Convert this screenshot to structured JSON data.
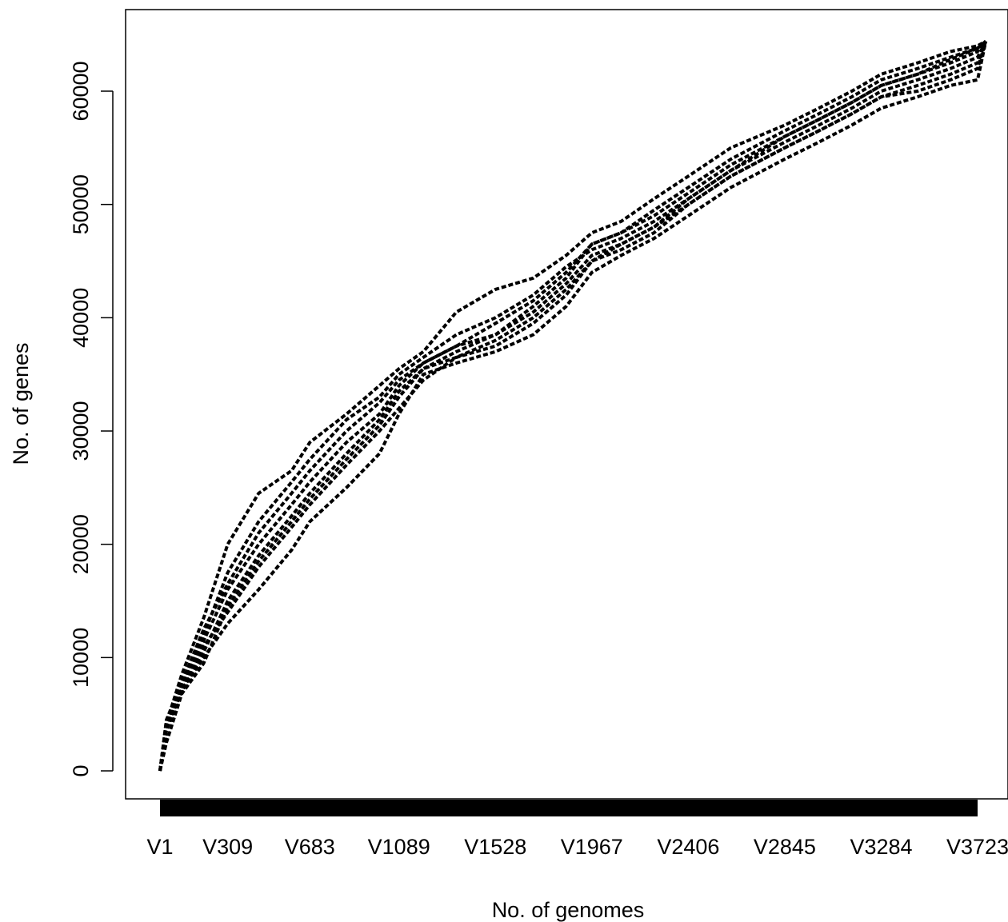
{
  "chart_data": {
    "type": "line",
    "title": "",
    "xlabel": "No. of genomes",
    "ylabel": "No. of genes",
    "x_tick_labels": [
      "V1",
      "V309",
      "V683",
      "V1089",
      "V1528",
      "V1967",
      "V2406",
      "V2845",
      "V3284",
      "V3723"
    ],
    "x_tick_genome_index": [
      1,
      309,
      683,
      1089,
      1528,
      1967,
      2406,
      2845,
      3284,
      3723
    ],
    "y_ticks": [
      0,
      10000,
      20000,
      30000,
      40000,
      50000,
      60000
    ],
    "y_tick_labels": [
      "0",
      "10000",
      "20000",
      "30000",
      "40000",
      "50000",
      "60000"
    ],
    "xlim": [
      1,
      3760
    ],
    "ylim": [
      0,
      64500
    ],
    "grid": false,
    "legend": false,
    "line_style": "dashed",
    "color": "#000000",
    "x": [
      1,
      30,
      100,
      200,
      309,
      450,
      600,
      683,
      850,
      1000,
      1089,
      1200,
      1350,
      1528,
      1700,
      1850,
      1967,
      2100,
      2250,
      2406,
      2600,
      2845,
      3000,
      3150,
      3284,
      3450,
      3600,
      3723,
      3760
    ],
    "series": [
      {
        "values": [
          0,
          4500,
          7800,
          12500,
          16500,
          21000,
          24500,
          26500,
          30000,
          32500,
          34500,
          36000,
          37500,
          38500,
          41000,
          43500,
          46500,
          47500,
          49000,
          51000,
          53500,
          56000,
          57500,
          59000,
          60500,
          61500,
          62800,
          63800,
          64400
        ]
      },
      {
        "values": [
          0,
          4000,
          7000,
          11000,
          14000,
          18000,
          21500,
          23500,
          27000,
          30000,
          32000,
          34500,
          36500,
          37500,
          39500,
          42000,
          45000,
          46000,
          47500,
          50000,
          52500,
          55000,
          56500,
          58000,
          59500,
          60500,
          61500,
          62500,
          64400
        ]
      },
      {
        "values": [
          0,
          4200,
          8500,
          13500,
          20000,
          24500,
          26500,
          29000,
          31500,
          34000,
          35500,
          37000,
          40500,
          42500,
          43500,
          45500,
          47500,
          48500,
          50500,
          52500,
          55000,
          57000,
          58500,
          60000,
          61500,
          62500,
          63500,
          64000,
          64400
        ]
      },
      {
        "values": [
          0,
          3500,
          7200,
          10000,
          13000,
          16000,
          19500,
          22000,
          25000,
          28000,
          31500,
          35000,
          36000,
          37000,
          38500,
          41000,
          44000,
          45500,
          47000,
          49000,
          51500,
          54000,
          55500,
          57000,
          58500,
          59500,
          60500,
          61000,
          64400
        ]
      },
      {
        "values": [
          0,
          4300,
          7600,
          12000,
          17500,
          22000,
          25500,
          27500,
          31000,
          33000,
          35000,
          36500,
          38500,
          40000,
          42000,
          44500,
          46000,
          47000,
          48500,
          50500,
          53000,
          55500,
          57000,
          58500,
          60000,
          61000,
          62000,
          63000,
          64400
        ]
      },
      {
        "values": [
          0,
          3800,
          7000,
          10500,
          15000,
          19000,
          22500,
          24500,
          28000,
          31000,
          33500,
          35500,
          37000,
          38500,
          40500,
          43000,
          45500,
          46500,
          48000,
          50000,
          52500,
          55000,
          56500,
          58000,
          59500,
          60000,
          61000,
          62000,
          64400
        ]
      },
      {
        "values": [
          0,
          2500,
          6800,
          9500,
          14500,
          18500,
          22000,
          24000,
          27500,
          30500,
          33000,
          35500,
          36500,
          38000,
          40000,
          42500,
          45000,
          46500,
          48000,
          50500,
          53000,
          56000,
          57500,
          59000,
          60500,
          61500,
          62500,
          63500,
          64400
        ]
      },
      {
        "values": [
          0,
          4100,
          7400,
          11500,
          16000,
          20000,
          23500,
          25500,
          29000,
          31500,
          34000,
          36000,
          37500,
          39500,
          41500,
          44000,
          46500,
          47500,
          49500,
          51500,
          54000,
          56500,
          58000,
          59500,
          61000,
          62000,
          63000,
          63800,
          64400
        ]
      }
    ]
  }
}
